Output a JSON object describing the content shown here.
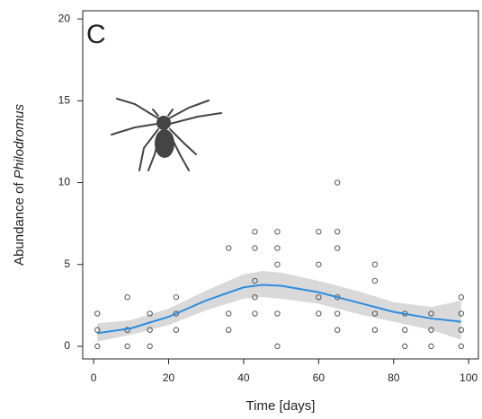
{
  "chart_data": {
    "type": "scatter",
    "panel_label": "C",
    "xlabel": "Time [days]",
    "ylabel": {
      "text": "Abundance of",
      "species": "Philodromus"
    },
    "xlim": [
      -2.9,
      102.6
    ],
    "ylim": [
      -0.77,
      20.5
    ],
    "xticks": [
      0,
      20,
      40,
      60,
      80,
      100
    ],
    "yticks": [
      0,
      5,
      10,
      15,
      20
    ],
    "points": {
      "x": [
        1,
        1,
        1,
        9,
        9,
        9,
        15,
        15,
        15,
        22,
        22,
        22,
        36,
        36,
        36,
        43,
        43,
        43,
        43,
        43,
        49,
        49,
        49,
        49,
        49,
        60,
        60,
        60,
        60,
        65,
        65,
        65,
        65,
        65,
        65,
        75,
        75,
        75,
        75,
        83,
        83,
        83,
        90,
        90,
        90,
        98,
        98,
        98,
        98
      ],
      "y": [
        0,
        1,
        2,
        0,
        1,
        3,
        0,
        1,
        2,
        1,
        2,
        3,
        1,
        2,
        6,
        2,
        3,
        4,
        6,
        7,
        0,
        2,
        5,
        6,
        7,
        2,
        3,
        5,
        7,
        1,
        2,
        3,
        6,
        7,
        10,
        1,
        2,
        4,
        5,
        0,
        1,
        2,
        0,
        1,
        2,
        0,
        1,
        2,
        3
      ]
    },
    "fit": {
      "color": "#2b8ce0",
      "band_color": "#d9d9d9",
      "x": [
        1,
        10,
        20,
        30,
        40,
        45,
        50,
        60,
        70,
        80,
        90,
        98
      ],
      "values": [
        0.8,
        1.1,
        1.8,
        2.8,
        3.6,
        3.75,
        3.7,
        3.3,
        2.7,
        2.1,
        1.7,
        1.5
      ],
      "lower": [
        0.3,
        0.7,
        1.3,
        2.2,
        2.9,
        3.0,
        2.9,
        2.6,
        2.0,
        1.5,
        1.0,
        0.4
      ],
      "upper": [
        1.4,
        1.6,
        2.3,
        3.4,
        4.4,
        4.6,
        4.5,
        4.0,
        3.4,
        2.7,
        2.4,
        2.8
      ]
    }
  }
}
